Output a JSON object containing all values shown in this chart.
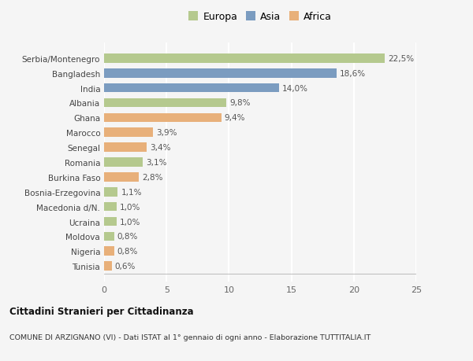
{
  "categories": [
    "Tunisia",
    "Nigeria",
    "Moldova",
    "Ucraina",
    "Macedonia d/N.",
    "Bosnia-Erzegovina",
    "Burkina Faso",
    "Romania",
    "Senegal",
    "Marocco",
    "Ghana",
    "Albania",
    "India",
    "Bangladesh",
    "Serbia/Montenegro"
  ],
  "values": [
    0.6,
    0.8,
    0.8,
    1.0,
    1.0,
    1.1,
    2.8,
    3.1,
    3.4,
    3.9,
    9.4,
    9.8,
    14.0,
    18.6,
    22.5
  ],
  "continents": [
    "Africa",
    "Africa",
    "Europa",
    "Europa",
    "Europa",
    "Europa",
    "Africa",
    "Europa",
    "Africa",
    "Africa",
    "Africa",
    "Europa",
    "Asia",
    "Asia",
    "Europa"
  ],
  "labels": [
    "0,6%",
    "0,8%",
    "0,8%",
    "1,0%",
    "1,0%",
    "1,1%",
    "2,8%",
    "3,1%",
    "3,4%",
    "3,9%",
    "9,4%",
    "9,8%",
    "14,0%",
    "18,6%",
    "22,5%"
  ],
  "colors": {
    "Europa": "#b5c98e",
    "Asia": "#7b9cc0",
    "Africa": "#e8b07a"
  },
  "legend_labels": [
    "Europa",
    "Asia",
    "Africa"
  ],
  "legend_colors": [
    "#b5c98e",
    "#7b9cc0",
    "#e8b07a"
  ],
  "xlim": [
    0,
    25
  ],
  "xticks": [
    0,
    5,
    10,
    15,
    20,
    25
  ],
  "title": "Cittadini Stranieri per Cittadinanza",
  "subtitle": "COMUNE DI ARZIGNANO (VI) - Dati ISTAT al 1° gennaio di ogni anno - Elaborazione TUTTITALIA.IT",
  "background_color": "#f5f5f5",
  "grid_color": "#ffffff",
  "bar_height": 0.62
}
